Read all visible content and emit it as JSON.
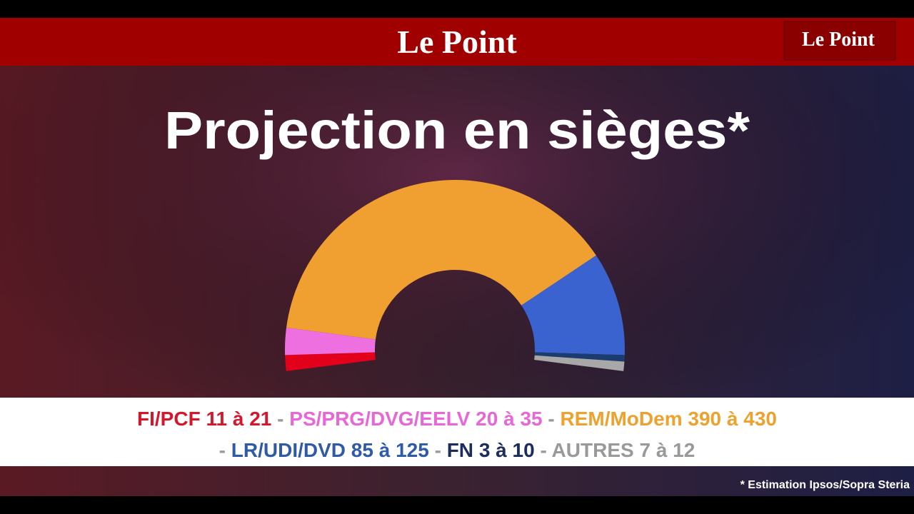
{
  "header": {
    "brand": "Le Point",
    "logo": "Le Point"
  },
  "chart_data": {
    "type": "hemicycle",
    "title": "Projection en sièges*",
    "range_word": "à",
    "separator": "-",
    "series": [
      {
        "name": "FI/PCF",
        "low": 11,
        "high": 21,
        "color": "#e3001b",
        "text_color": "#d4172b"
      },
      {
        "name": "PS/PRG/DVG/EELV",
        "low": 20,
        "high": 35,
        "color": "#ee6fdf",
        "text_color": "#e866d6"
      },
      {
        "name": "REM/MoDem",
        "low": 390,
        "high": 430,
        "color": "#f0a030",
        "text_color": "#efa12e"
      },
      {
        "name": "LR/UDI/DVD",
        "low": 85,
        "high": 125,
        "color": "#3a63d0",
        "text_color": "#2f5aa8"
      },
      {
        "name": "FN",
        "low": 3,
        "high": 10,
        "color": "#1c3b6e",
        "text_color": "#1c2c5c"
      },
      {
        "name": "AUTRES",
        "low": 7,
        "high": 12,
        "color": "#a8a8a8",
        "text_color": "#999999"
      }
    ],
    "footnote": "* Estimation Ipsos/Sopra Steria"
  }
}
